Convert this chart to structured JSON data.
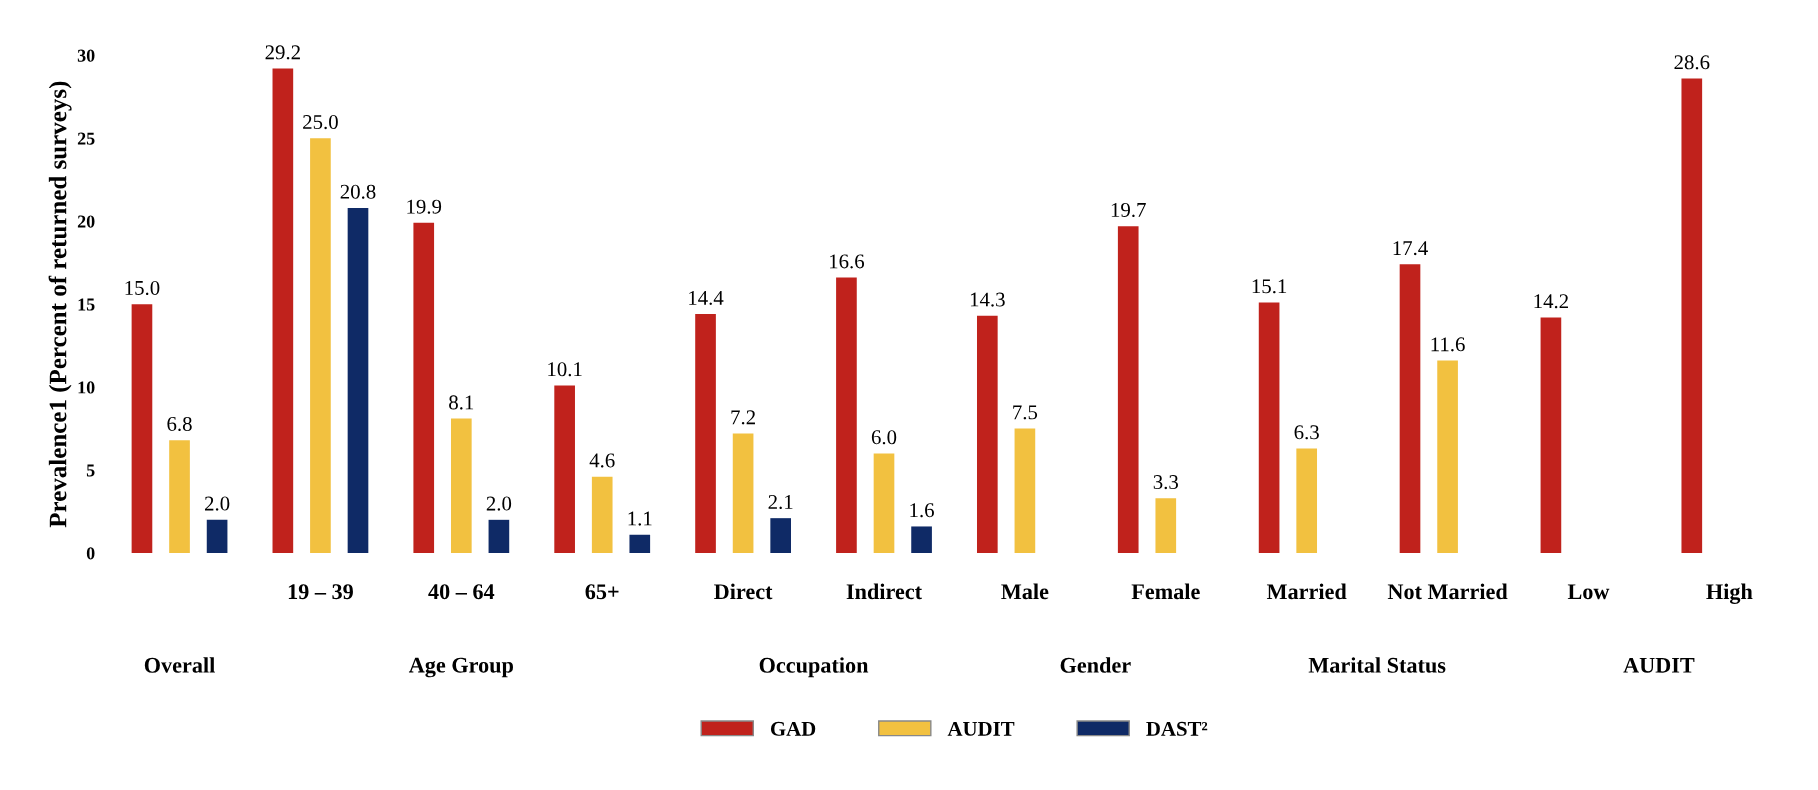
{
  "chart_data": {
    "type": "bar",
    "ylabel": "Prevalence1 (Percent of returned surveys)",
    "categories": [
      null,
      "19 – 39",
      "40 – 64",
      "65+",
      "Direct",
      "Indirect",
      "Male",
      "Female",
      "Married",
      "Not Married",
      "Low",
      "High"
    ],
    "series": [
      {
        "name": "GAD",
        "color": "#c0221c",
        "values": [
          15.0,
          29.2,
          19.9,
          10.1,
          14.4,
          16.6,
          14.3,
          19.7,
          15.1,
          17.4,
          14.2,
          28.6
        ],
        "value_labels": [
          "15.0",
          "29.2",
          "19.9",
          "10.1",
          "14.4",
          "16.6",
          "14.3",
          "19.7",
          "15.1",
          "17.4",
          "14.2",
          "28.6"
        ]
      },
      {
        "name": "AUDIT",
        "color": "#f2c140",
        "values": [
          6.8,
          25.0,
          8.1,
          4.6,
          7.2,
          6.0,
          7.5,
          3.3,
          6.3,
          11.6,
          null,
          null
        ],
        "value_labels": [
          "6.8",
          "25.0",
          "8.1",
          "4.6",
          "7.2",
          "6.0",
          "7.5",
          "3.3",
          "6.3",
          "11.6",
          null,
          null
        ]
      },
      {
        "name": "DAST²",
        "color": "#0f2a66",
        "values": [
          2.0,
          20.8,
          2.0,
          1.1,
          2.1,
          1.6,
          null,
          null,
          null,
          null,
          null,
          null
        ],
        "value_labels": [
          "2.0",
          "20.8",
          "2.0",
          "1.1",
          "2.1",
          "1.6",
          null,
          null,
          null,
          null,
          null,
          null
        ]
      }
    ],
    "annotations": [
      "Overall",
      "Age Group",
      "Occupation",
      "Gender",
      "Marital Status",
      "AUDIT"
    ],
    "ylim": [
      0,
      30
    ],
    "yticks": [
      0,
      5,
      10,
      15,
      20,
      25,
      30
    ],
    "grid": false,
    "legend": "bottom"
  }
}
